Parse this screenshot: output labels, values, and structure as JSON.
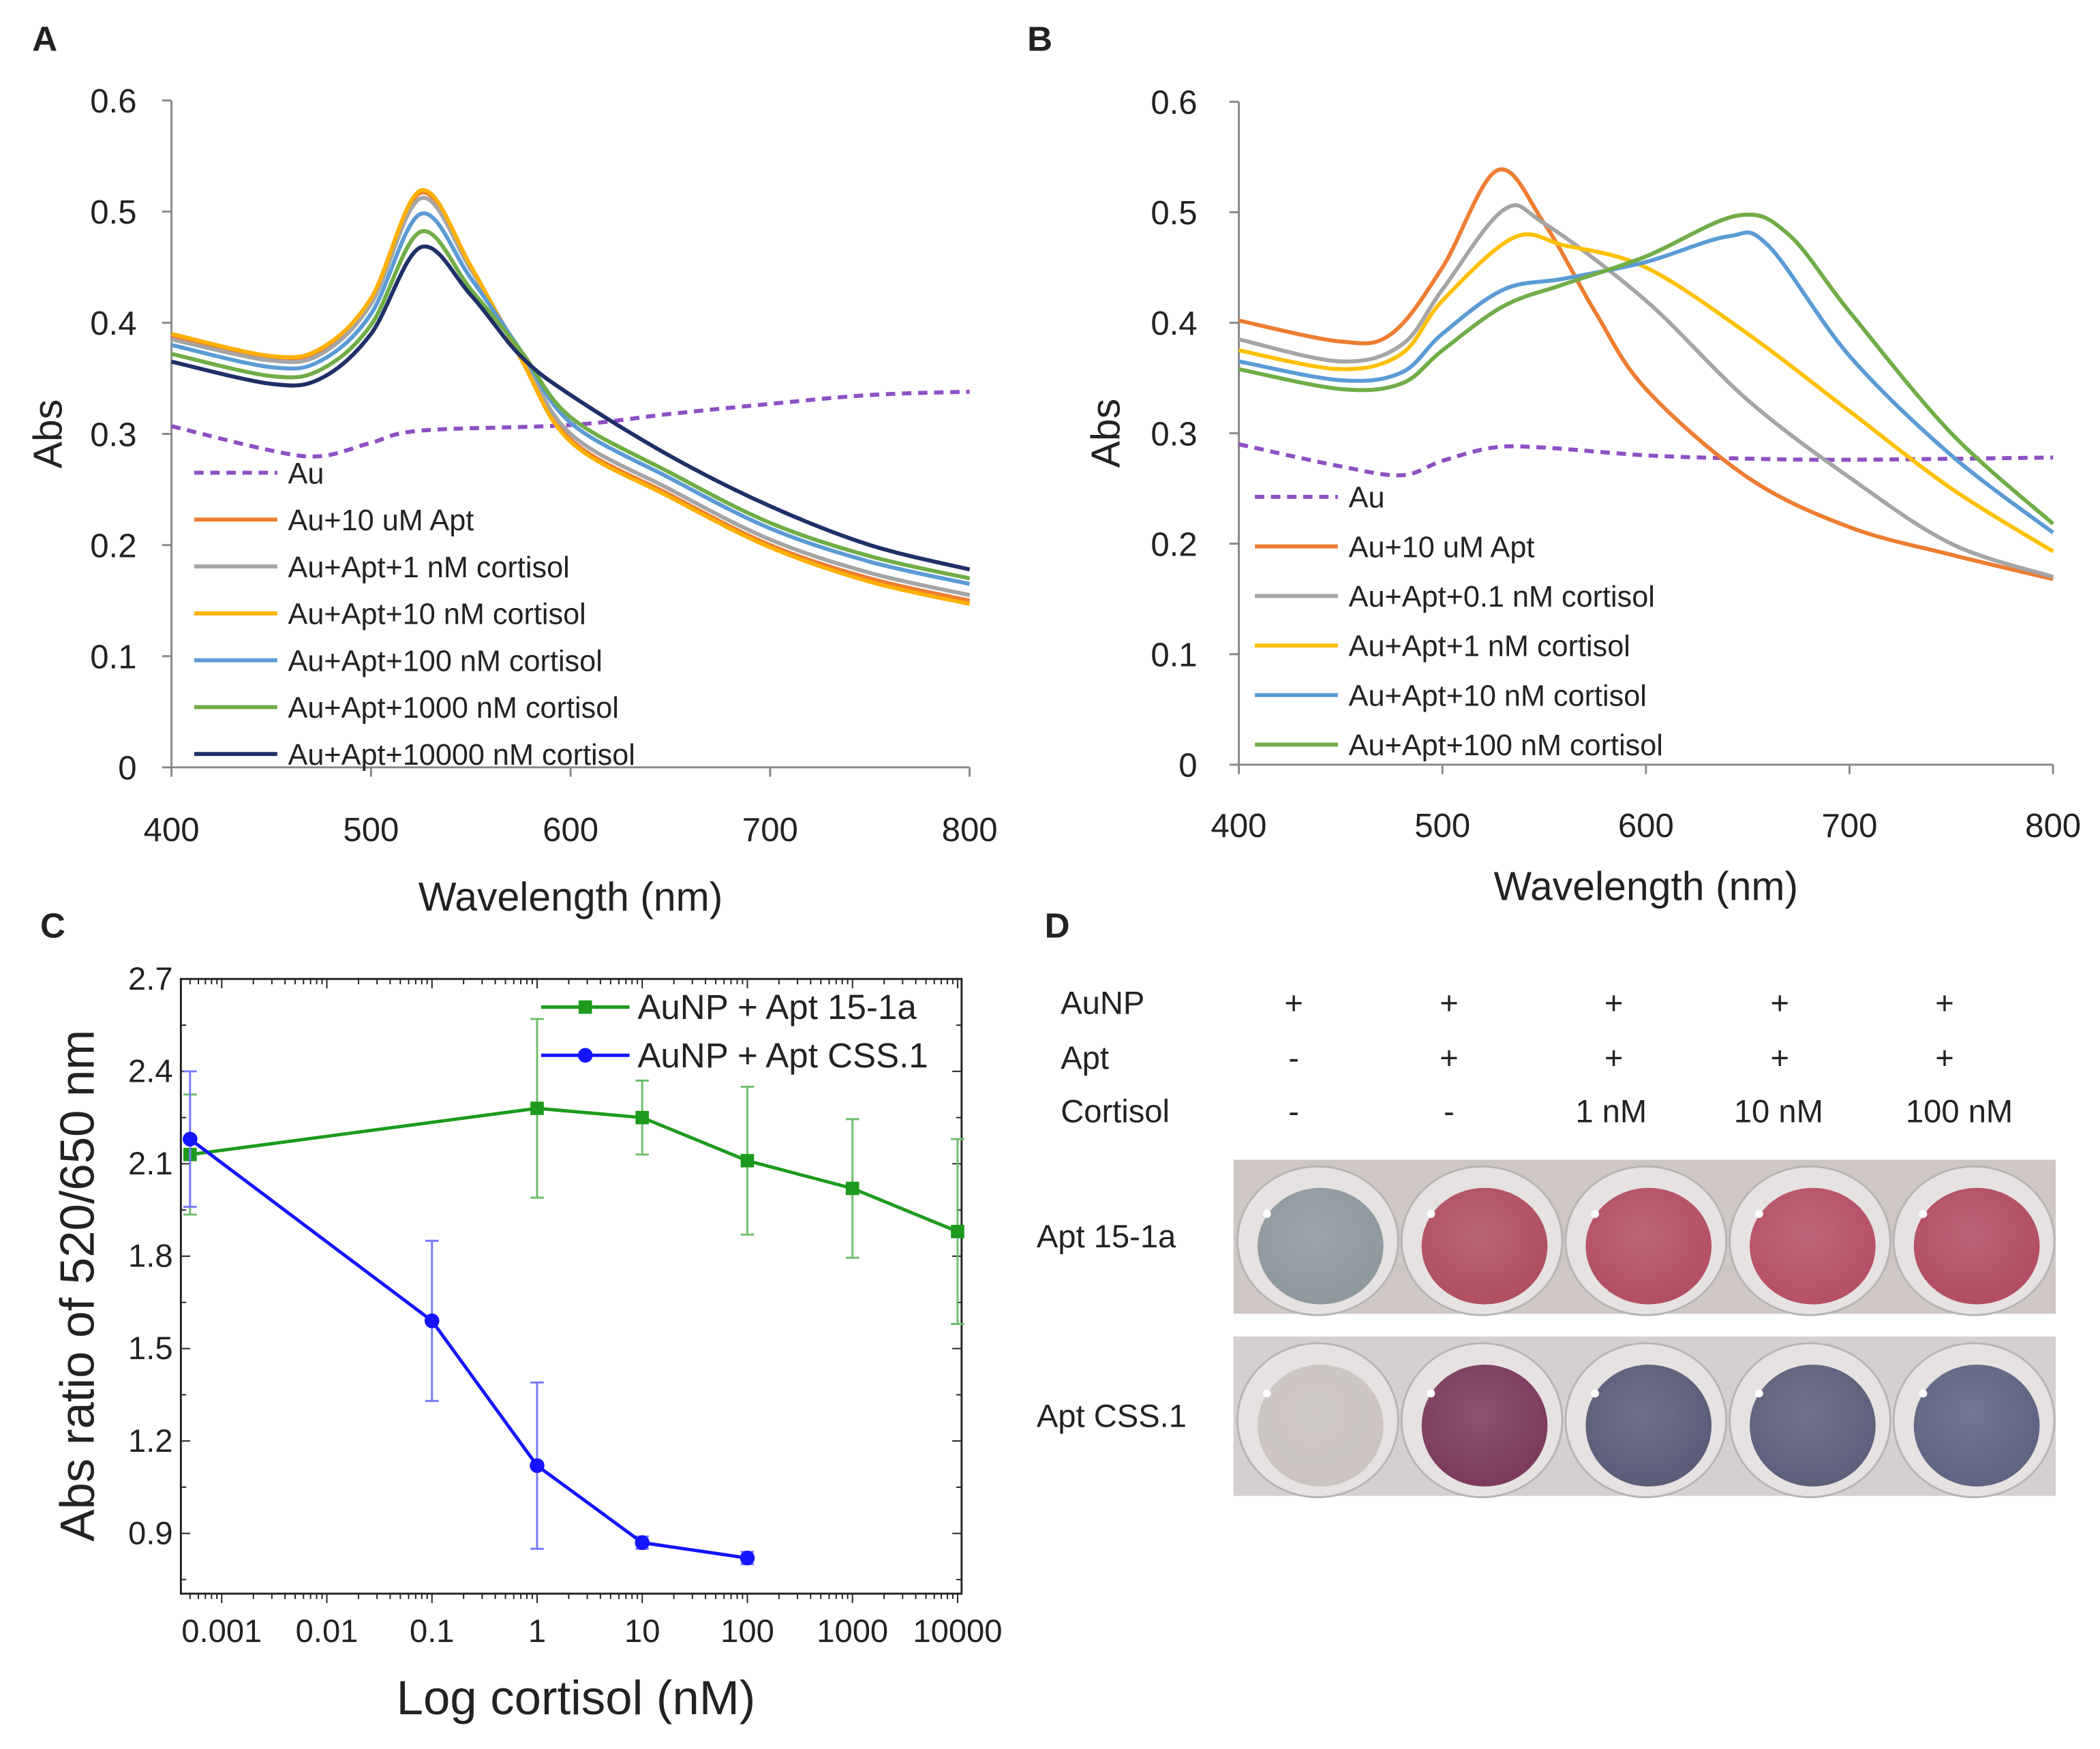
{
  "panels": {
    "A": "A",
    "B": "B",
    "C": "C",
    "D": "D"
  },
  "chart_data": [
    {
      "id": "A",
      "type": "line",
      "xlabel": "Wavelength (nm)",
      "ylabel": "Abs",
      "xlim": [
        400,
        800
      ],
      "ylim": [
        0,
        0.6
      ],
      "xticks": [
        "400",
        "500",
        "600",
        "700",
        "800"
      ],
      "yticks": [
        "0",
        "0.1",
        "0.2",
        "0.3",
        "0.4",
        "0.5",
        "0.6"
      ],
      "grid": false,
      "legend": "bottom-left",
      "series": [
        {
          "name": "Au",
          "color": "#8e4fc4",
          "dashed": true,
          "x": [
            400,
            450,
            475,
            500,
            525,
            600,
            650,
            700,
            750,
            800
          ],
          "y": [
            0.307,
            0.285,
            0.28,
            0.292,
            0.303,
            0.308,
            0.318,
            0.327,
            0.335,
            0.338
          ]
        },
        {
          "name": "Au+10 uM Apt",
          "color": "#ed7d31",
          "x": [
            400,
            450,
            475,
            500,
            525,
            550,
            575,
            600,
            650,
            700,
            750,
            800
          ],
          "y": [
            0.388,
            0.368,
            0.375,
            0.42,
            0.517,
            0.45,
            0.37,
            0.295,
            0.245,
            0.2,
            0.17,
            0.15
          ]
        },
        {
          "name": "Au+Apt+1 nM cortisol",
          "color": "#a5a5a5",
          "x": [
            400,
            450,
            475,
            500,
            525,
            550,
            575,
            600,
            650,
            700,
            750,
            800
          ],
          "y": [
            0.385,
            0.366,
            0.372,
            0.417,
            0.512,
            0.448,
            0.372,
            0.3,
            0.25,
            0.205,
            0.175,
            0.155
          ]
        },
        {
          "name": "Au+Apt+10 nM cortisol",
          "color": "#ffb000",
          "x": [
            400,
            450,
            475,
            500,
            525,
            550,
            575,
            600,
            650,
            700,
            750,
            800
          ],
          "y": [
            0.39,
            0.37,
            0.377,
            0.422,
            0.519,
            0.451,
            0.368,
            0.293,
            0.243,
            0.198,
            0.167,
            0.147
          ]
        },
        {
          "name": "Au+Apt+100 nM cortisol",
          "color": "#5b9bd5",
          "x": [
            400,
            450,
            475,
            500,
            525,
            550,
            575,
            600,
            650,
            700,
            750,
            800
          ],
          "y": [
            0.38,
            0.36,
            0.366,
            0.408,
            0.498,
            0.44,
            0.375,
            0.31,
            0.26,
            0.215,
            0.185,
            0.165
          ]
        },
        {
          "name": "Au+Apt+1000 nM cortisol",
          "color": "#70ad47",
          "x": [
            400,
            450,
            475,
            500,
            525,
            550,
            575,
            600,
            650,
            700,
            750,
            800
          ],
          "y": [
            0.372,
            0.352,
            0.358,
            0.398,
            0.482,
            0.43,
            0.375,
            0.315,
            0.265,
            0.22,
            0.19,
            0.17
          ]
        },
        {
          "name": "Au+Apt+10000 nM cortisol",
          "color": "#1f3068",
          "x": [
            400,
            450,
            475,
            500,
            525,
            550,
            575,
            600,
            650,
            700,
            750,
            800
          ],
          "y": [
            0.365,
            0.345,
            0.35,
            0.39,
            0.468,
            0.425,
            0.37,
            0.335,
            0.28,
            0.235,
            0.2,
            0.178
          ]
        }
      ]
    },
    {
      "id": "B",
      "type": "line",
      "xlabel": "Wavelength (nm)",
      "ylabel": "Abs",
      "xlim": [
        400,
        800
      ],
      "ylim": [
        0,
        0.6
      ],
      "xticks": [
        "400",
        "500",
        "600",
        "700",
        "800"
      ],
      "yticks": [
        "0",
        "0.1",
        "0.2",
        "0.3",
        "0.4",
        "0.5",
        "0.6"
      ],
      "grid": false,
      "legend": "bottom-left",
      "series": [
        {
          "name": "Au",
          "color": "#8e4fc4",
          "dashed": true,
          "x": [
            400,
            450,
            480,
            500,
            525,
            550,
            600,
            650,
            700,
            800
          ],
          "y": [
            0.29,
            0.27,
            0.262,
            0.275,
            0.287,
            0.287,
            0.28,
            0.277,
            0.276,
            0.278
          ]
        },
        {
          "name": "Au+10 uM Apt",
          "color": "#ed7d31",
          "x": [
            400,
            450,
            475,
            500,
            527,
            550,
            575,
            600,
            650,
            700,
            750,
            800
          ],
          "y": [
            0.402,
            0.383,
            0.39,
            0.45,
            0.538,
            0.49,
            0.41,
            0.34,
            0.26,
            0.215,
            0.19,
            0.168
          ]
        },
        {
          "name": "Au+Apt+0.1 nM cortisol",
          "color": "#a5a5a5",
          "x": [
            400,
            450,
            480,
            500,
            530,
            550,
            600,
            650,
            700,
            750,
            800
          ],
          "y": [
            0.385,
            0.365,
            0.38,
            0.43,
            0.502,
            0.49,
            0.42,
            0.33,
            0.26,
            0.2,
            0.17
          ]
        },
        {
          "name": "Au+Apt+1 nM cortisol",
          "color": "#ffc000",
          "x": [
            400,
            450,
            480,
            500,
            535,
            560,
            600,
            650,
            700,
            750,
            800
          ],
          "y": [
            0.375,
            0.358,
            0.372,
            0.42,
            0.477,
            0.47,
            0.45,
            0.39,
            0.32,
            0.25,
            0.193
          ]
        },
        {
          "name": "Au+Apt+10 nM cortisol",
          "color": "#5b9bd5",
          "x": [
            400,
            450,
            480,
            500,
            530,
            560,
            600,
            640,
            660,
            700,
            750,
            800
          ],
          "y": [
            0.365,
            0.348,
            0.355,
            0.39,
            0.43,
            0.44,
            0.455,
            0.478,
            0.47,
            0.37,
            0.28,
            0.21
          ]
        },
        {
          "name": "Au+Apt+100 nM cortisol",
          "color": "#70ad47",
          "x": [
            400,
            450,
            480,
            500,
            530,
            560,
            600,
            645,
            670,
            700,
            750,
            800
          ],
          "y": [
            0.358,
            0.34,
            0.345,
            0.375,
            0.415,
            0.435,
            0.46,
            0.497,
            0.48,
            0.41,
            0.3,
            0.218
          ]
        }
      ]
    },
    {
      "id": "C",
      "type": "line",
      "xlabel": "Log cortisol (nM)",
      "ylabel": "Abs ratio of 520/650 nm",
      "xscale": "log",
      "xlim": [
        0.0004,
        12000
      ],
      "ylim": [
        0.7,
        2.7
      ],
      "xticks": [
        "0.001",
        "0.01",
        "0.1",
        "1",
        "10",
        "100",
        "1000",
        "10000"
      ],
      "yticks": [
        "0.9",
        "1.2",
        "1.5",
        "1.8",
        "2.1",
        "2.4",
        "2.7"
      ],
      "grid": false,
      "legend": "top-right",
      "series": [
        {
          "name": "AuNP + Apt 15-1a",
          "color": "#1e9a1e",
          "marker": "square",
          "x": [
            0.0005,
            1,
            10,
            100,
            1000,
            10000
          ],
          "y": [
            2.13,
            2.28,
            2.25,
            2.11,
            2.02,
            1.88
          ],
          "error": [
            0.195,
            0.29,
            0.12,
            0.24,
            0.225,
            0.3
          ]
        },
        {
          "name": "AuNP + Apt CSS.1",
          "color": "#1414ff",
          "marker": "circle",
          "x": [
            0.0005,
            0.1,
            1,
            10,
            100
          ],
          "y": [
            2.18,
            1.59,
            1.12,
            0.87,
            0.82
          ],
          "error": [
            0.22,
            0.26,
            0.27,
            0.02,
            0.02
          ]
        }
      ]
    }
  ],
  "panel_d": {
    "row_headers": [
      "AuNP",
      "Apt",
      "Cortisol"
    ],
    "columns": [
      {
        "aunp": "+",
        "apt": "-",
        "cortisol": "-"
      },
      {
        "aunp": "+",
        "apt": "+",
        "cortisol": "-"
      },
      {
        "aunp": "+",
        "apt": "+",
        "cortisol": "1 nM"
      },
      {
        "aunp": "+",
        "apt": "+",
        "cortisol": "10 nM"
      },
      {
        "aunp": "+",
        "apt": "+",
        "cortisol": "100 nM"
      }
    ],
    "photo_rows": [
      {
        "label": "Apt 15-1a",
        "well_colors": [
          "#8e999e",
          "#b04f60",
          "#b34f62",
          "#b65064",
          "#b24d61"
        ]
      },
      {
        "label": "Apt CSS.1",
        "well_colors": [
          "#cbc4c2",
          "#7c3a5c",
          "#5b5c78",
          "#5e5f7b",
          "#5f6482"
        ]
      }
    ]
  }
}
